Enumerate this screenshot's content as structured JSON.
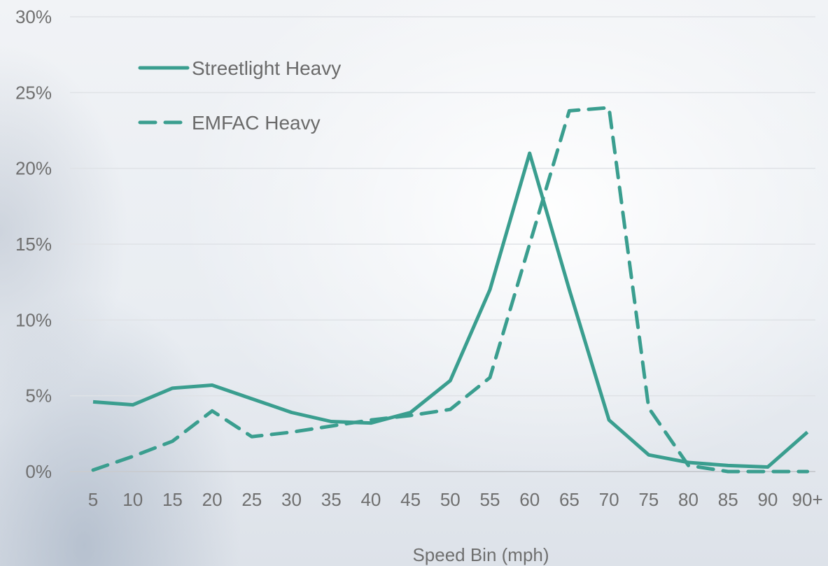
{
  "chart_data": {
    "type": "line",
    "title": "",
    "xlabel": "Speed Bin (mph)",
    "ylabel": "",
    "categories": [
      "5",
      "10",
      "15",
      "20",
      "25",
      "30",
      "35",
      "40",
      "45",
      "50",
      "55",
      "60",
      "65",
      "70",
      "75",
      "80",
      "85",
      "90",
      "90+"
    ],
    "y_ticks": [
      "0%",
      "5%",
      "10%",
      "15%",
      "20%",
      "25%",
      "30%"
    ],
    "ylim": [
      0,
      30
    ],
    "grid": "horizontal",
    "legend_position": "top-left",
    "series": [
      {
        "name": "Streetlight Heavy",
        "style": "solid",
        "color": "#3a9e8f",
        "values": [
          4.6,
          4.4,
          5.5,
          5.7,
          4.8,
          3.9,
          3.3,
          3.2,
          3.9,
          6.0,
          12.0,
          21.0,
          12.0,
          3.4,
          1.1,
          0.6,
          0.4,
          0.3,
          2.6
        ]
      },
      {
        "name": "EMFAC Heavy",
        "style": "dashed",
        "color": "#3a9e8f",
        "values": [
          0.1,
          1.0,
          2.0,
          4.0,
          2.3,
          2.6,
          3.0,
          3.4,
          3.7,
          4.1,
          6.2,
          15.0,
          23.8,
          24.0,
          4.2,
          0.4,
          0.0,
          0.0,
          0.0
        ]
      }
    ]
  }
}
